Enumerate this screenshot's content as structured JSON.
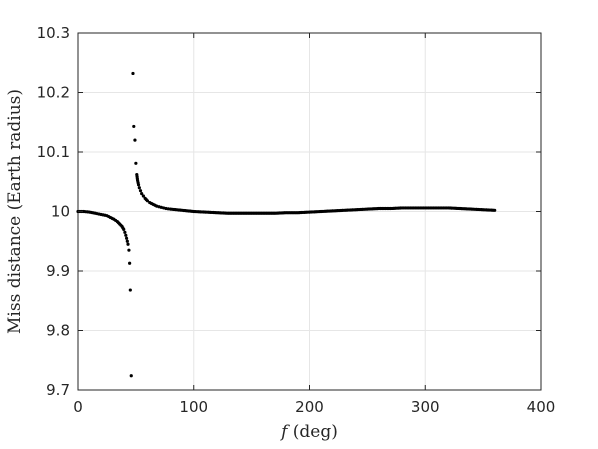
{
  "chart_data": {
    "type": "scatter",
    "title": "",
    "xlabel": {
      "var": "f",
      "unit": "(deg)"
    },
    "ylabel": "Miss distance (Earth radius)",
    "xlim": [
      0,
      400
    ],
    "ylim": [
      9.7,
      10.3
    ],
    "xticks": [
      "0",
      "100",
      "200",
      "300",
      "400"
    ],
    "yticks": [
      "9.7",
      "9.8",
      "9.9",
      "10",
      "10.1",
      "10.2",
      "10.3"
    ],
    "grid": true,
    "marker_color": "#000000",
    "series": [
      {
        "name": "",
        "points": [
          [
            0,
            10.0
          ],
          [
            5,
            10.0
          ],
          [
            10,
            9.999
          ],
          [
            15,
            9.997
          ],
          [
            20,
            9.995
          ],
          [
            25,
            9.993
          ],
          [
            28,
            9.99
          ],
          [
            31,
            9.987
          ],
          [
            34,
            9.983
          ],
          [
            36,
            9.979
          ],
          [
            38,
            9.975
          ],
          [
            39.5,
            9.97
          ],
          [
            40.5,
            9.965
          ],
          [
            41.3,
            9.96
          ],
          [
            42,
            9.955
          ],
          [
            42.6,
            9.95
          ],
          [
            43.2,
            9.945
          ],
          [
            44,
            9.935
          ],
          [
            44.6,
            9.913
          ],
          [
            45.2,
            9.868
          ],
          [
            46,
            9.724
          ],
          [
            47.5,
            10.232
          ],
          [
            48.2,
            10.143
          ],
          [
            49.2,
            10.12
          ],
          [
            50,
            10.081
          ],
          [
            50.8,
            10.062
          ],
          [
            51.5,
            10.052
          ],
          [
            52.3,
            10.045
          ],
          [
            53,
            10.04
          ],
          [
            54,
            10.035
          ],
          [
            55,
            10.03
          ],
          [
            56.5,
            10.026
          ],
          [
            58,
            10.022
          ],
          [
            60,
            10.018
          ],
          [
            62,
            10.015
          ],
          [
            65,
            10.012
          ],
          [
            68,
            10.009
          ],
          [
            72,
            10.007
          ],
          [
            76,
            10.005
          ],
          [
            80,
            10.004
          ],
          [
            90,
            10.002
          ],
          [
            100,
            10.0
          ],
          [
            110,
            9.999
          ],
          [
            120,
            9.998
          ],
          [
            130,
            9.997
          ],
          [
            140,
            9.997
          ],
          [
            150,
            9.997
          ],
          [
            160,
            9.997
          ],
          [
            170,
            9.997
          ],
          [
            180,
            9.998
          ],
          [
            190,
            9.998
          ],
          [
            200,
            9.999
          ],
          [
            210,
            10.0
          ],
          [
            220,
            10.001
          ],
          [
            230,
            10.002
          ],
          [
            240,
            10.003
          ],
          [
            250,
            10.004
          ],
          [
            260,
            10.005
          ],
          [
            270,
            10.005
          ],
          [
            280,
            10.006
          ],
          [
            290,
            10.006
          ],
          [
            300,
            10.006
          ],
          [
            310,
            10.006
          ],
          [
            320,
            10.006
          ],
          [
            330,
            10.005
          ],
          [
            340,
            10.004
          ],
          [
            350,
            10.003
          ],
          [
            360,
            10.002
          ]
        ]
      }
    ]
  }
}
